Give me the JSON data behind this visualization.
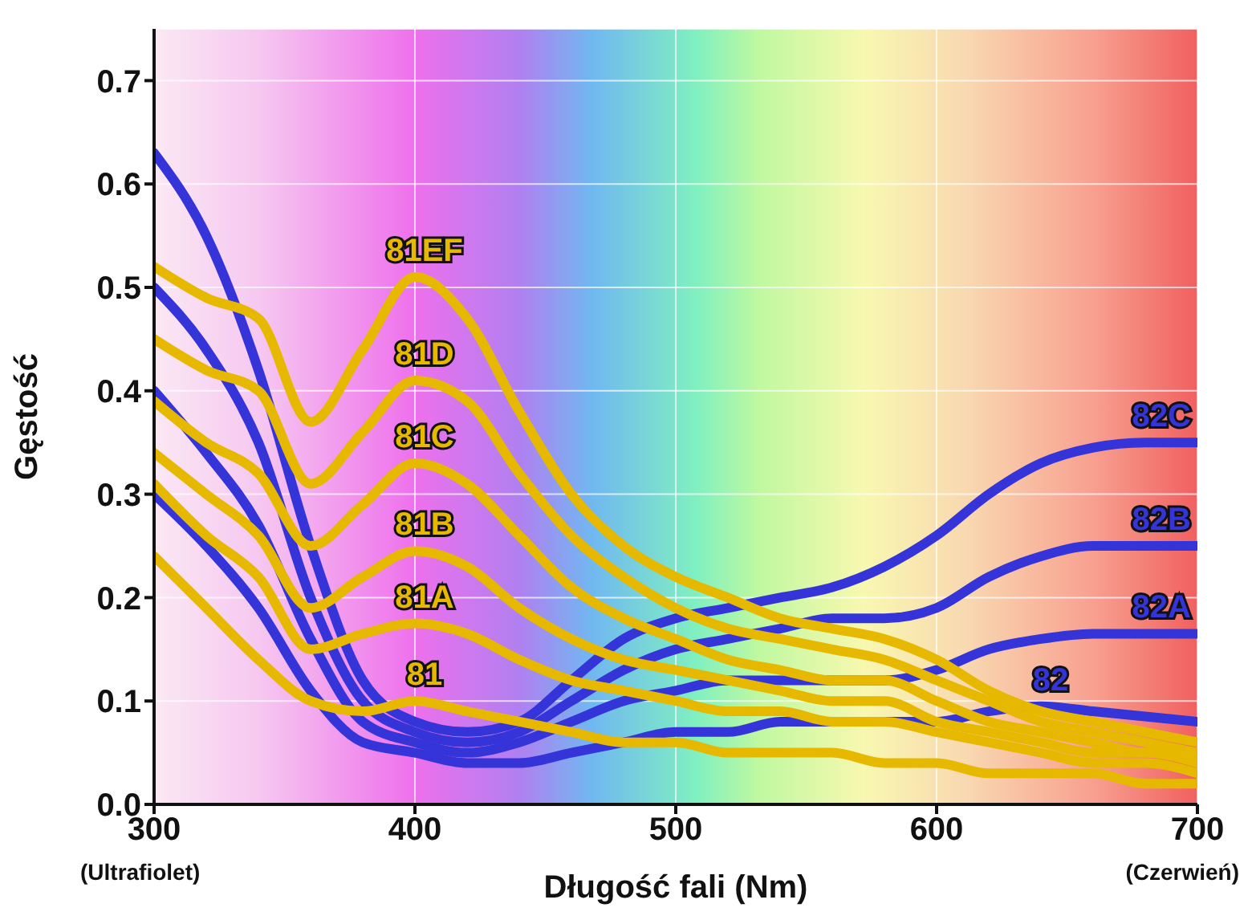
{
  "chart_data": {
    "type": "line",
    "xlabel": "Długość fali (Nm)",
    "ylabel": "Gęstość",
    "x": [
      300,
      320,
      340,
      360,
      380,
      400,
      420,
      440,
      460,
      480,
      500,
      520,
      540,
      560,
      580,
      600,
      620,
      640,
      660,
      680,
      700
    ],
    "xlim": [
      300,
      700
    ],
    "xticks": [
      300,
      400,
      500,
      600,
      700
    ],
    "ylim": [
      0,
      0.75
    ],
    "yticks": [
      {
        "value": 0,
        "label": "0.0"
      },
      0.1,
      0.2,
      0.3,
      0.4,
      0.5,
      0.6,
      0.7
    ],
    "grid": true,
    "legend": false,
    "marker": "none",
    "line_style": "solid",
    "annotations": [
      "(Ultrafiolet)",
      "(Czerwień)"
    ],
    "series": [
      {
        "name": "82C",
        "color": "#3434d8",
        "values": [
          0.63,
          0.55,
          0.42,
          0.25,
          0.12,
          0.08,
          0.07,
          0.08,
          0.12,
          0.16,
          0.18,
          0.19,
          0.2,
          0.21,
          0.23,
          0.26,
          0.3,
          0.33,
          0.345,
          0.35,
          0.35
        ]
      },
      {
        "name": "82B",
        "color": "#3434d8",
        "values": [
          0.5,
          0.44,
          0.35,
          0.2,
          0.1,
          0.07,
          0.06,
          0.07,
          0.1,
          0.13,
          0.15,
          0.16,
          0.17,
          0.18,
          0.18,
          0.19,
          0.22,
          0.24,
          0.25,
          0.25,
          0.25
        ]
      },
      {
        "name": "82A",
        "color": "#3434d8",
        "values": [
          0.4,
          0.34,
          0.27,
          0.16,
          0.08,
          0.06,
          0.05,
          0.06,
          0.08,
          0.1,
          0.11,
          0.12,
          0.12,
          0.12,
          0.12,
          0.13,
          0.15,
          0.16,
          0.165,
          0.165,
          0.165
        ]
      },
      {
        "name": "82",
        "color": "#3434d8",
        "values": [
          0.3,
          0.25,
          0.19,
          0.11,
          0.06,
          0.05,
          0.04,
          0.04,
          0.05,
          0.06,
          0.07,
          0.07,
          0.08,
          0.08,
          0.08,
          0.08,
          0.09,
          0.095,
          0.09,
          0.085,
          0.08
        ]
      },
      {
        "name": "81EF",
        "color": "#e6b800",
        "values": [
          0.52,
          0.49,
          0.47,
          0.37,
          0.44,
          0.51,
          0.47,
          0.38,
          0.3,
          0.25,
          0.22,
          0.2,
          0.18,
          0.17,
          0.16,
          0.14,
          0.11,
          0.09,
          0.08,
          0.07,
          0.06
        ]
      },
      {
        "name": "81D",
        "color": "#e6b800",
        "values": [
          0.45,
          0.42,
          0.4,
          0.31,
          0.36,
          0.41,
          0.39,
          0.32,
          0.26,
          0.22,
          0.19,
          0.17,
          0.16,
          0.15,
          0.14,
          0.12,
          0.1,
          0.08,
          0.07,
          0.06,
          0.05
        ]
      },
      {
        "name": "81C",
        "color": "#e6b800",
        "values": [
          0.39,
          0.35,
          0.32,
          0.25,
          0.29,
          0.33,
          0.31,
          0.26,
          0.21,
          0.18,
          0.16,
          0.14,
          0.13,
          0.12,
          0.12,
          0.1,
          0.08,
          0.07,
          0.06,
          0.05,
          0.05
        ]
      },
      {
        "name": "81B",
        "color": "#e6b800",
        "values": [
          0.34,
          0.3,
          0.26,
          0.19,
          0.22,
          0.245,
          0.23,
          0.19,
          0.16,
          0.14,
          0.13,
          0.12,
          0.11,
          0.1,
          0.1,
          0.08,
          0.07,
          0.06,
          0.05,
          0.05,
          0.04
        ]
      },
      {
        "name": "81A",
        "color": "#e6b800",
        "values": [
          0.31,
          0.26,
          0.22,
          0.15,
          0.165,
          0.175,
          0.165,
          0.14,
          0.12,
          0.11,
          0.1,
          0.09,
          0.09,
          0.08,
          0.08,
          0.07,
          0.06,
          0.05,
          0.04,
          0.04,
          0.03
        ]
      },
      {
        "name": "81",
        "color": "#e6b800",
        "values": [
          0.24,
          0.19,
          0.14,
          0.1,
          0.09,
          0.1,
          0.09,
          0.08,
          0.07,
          0.06,
          0.06,
          0.05,
          0.05,
          0.05,
          0.04,
          0.04,
          0.03,
          0.03,
          0.03,
          0.02,
          0.02
        ]
      }
    ]
  }
}
